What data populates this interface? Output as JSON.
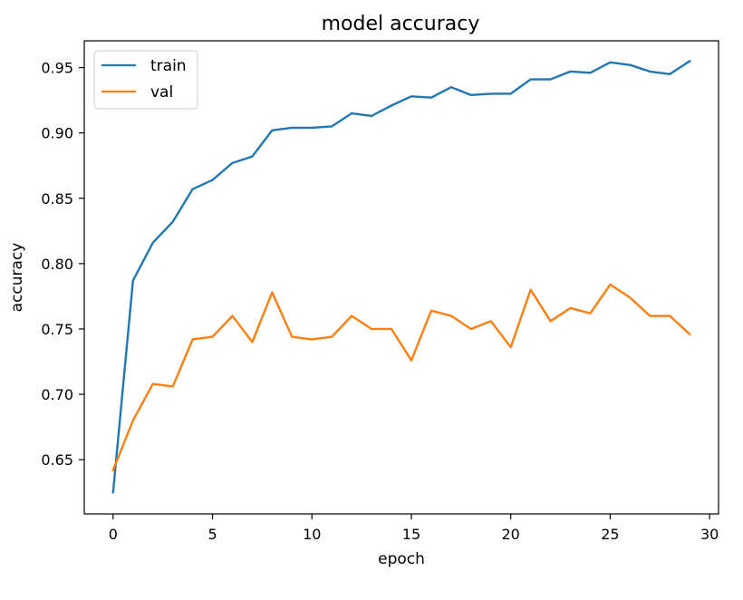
{
  "chart_data": {
    "type": "line",
    "title": "model accuracy",
    "xlabel": "epoch",
    "ylabel": "accuracy",
    "xlim": [
      -1.45,
      30.45
    ],
    "ylim": [
      0.6085,
      0.9705
    ],
    "xticks": [
      0,
      5,
      10,
      15,
      20,
      25,
      30
    ],
    "yticks": [
      0.65,
      0.7,
      0.75,
      0.8,
      0.85,
      0.9,
      0.95
    ],
    "grid": false,
    "legend_position": "top-left",
    "x": [
      0,
      1,
      2,
      3,
      4,
      5,
      6,
      7,
      8,
      9,
      10,
      11,
      12,
      13,
      14,
      15,
      16,
      17,
      18,
      19,
      20,
      21,
      22,
      23,
      24,
      25,
      26,
      27,
      28,
      29
    ],
    "series": [
      {
        "name": "train",
        "color": "#1f77b4",
        "values": [
          0.625,
          0.787,
          0.816,
          0.832,
          0.857,
          0.864,
          0.877,
          0.882,
          0.902,
          0.904,
          0.904,
          0.905,
          0.915,
          0.913,
          0.921,
          0.928,
          0.927,
          0.935,
          0.929,
          0.93,
          0.93,
          0.941,
          0.941,
          0.947,
          0.946,
          0.954,
          0.952,
          0.947,
          0.945,
          0.955
        ]
      },
      {
        "name": "val",
        "color": "#ff7f0e",
        "values": [
          0.642,
          0.68,
          0.708,
          0.706,
          0.742,
          0.744,
          0.76,
          0.74,
          0.778,
          0.744,
          0.742,
          0.744,
          0.76,
          0.75,
          0.75,
          0.726,
          0.764,
          0.76,
          0.75,
          0.756,
          0.736,
          0.78,
          0.756,
          0.766,
          0.762,
          0.784,
          0.774,
          0.76,
          0.76,
          0.746
        ]
      }
    ]
  }
}
